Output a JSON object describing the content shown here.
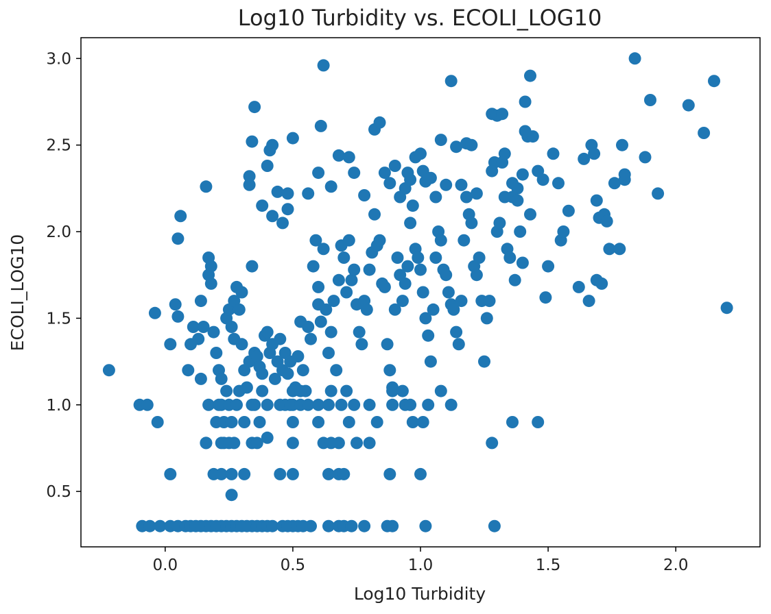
{
  "chart_data": {
    "type": "scatter",
    "title": "Log10 Turbidity vs. ECOLI_LOG10",
    "xlabel": "Log10 Turbidity",
    "ylabel": "ECOLI_LOG10",
    "xlim": [
      -0.33,
      2.33
    ],
    "ylim": [
      0.18,
      3.12
    ],
    "xticks": [
      0.0,
      0.5,
      1.0,
      1.5,
      2.0
    ],
    "xtick_labels": [
      "0.0",
      "0.5",
      "1.0",
      "1.5",
      "2.0"
    ],
    "yticks": [
      0.5,
      1.0,
      1.5,
      2.0,
      2.5,
      3.0
    ],
    "ytick_labels": [
      "0.5",
      "1.0",
      "1.5",
      "2.0",
      "2.5",
      "3.0"
    ],
    "grid": false,
    "legend": "none",
    "marker_color": "#1f77b4",
    "points": [
      [
        -0.22,
        1.2
      ],
      [
        -0.1,
        1.0
      ],
      [
        -0.07,
        1.0
      ],
      [
        -0.03,
        0.9
      ],
      [
        -0.04,
        1.53
      ],
      [
        0.02,
        0.6
      ],
      [
        0.02,
        1.35
      ],
      [
        0.04,
        1.58
      ],
      [
        0.05,
        1.51
      ],
      [
        0.06,
        2.09
      ],
      [
        0.05,
        1.96
      ],
      [
        0.09,
        1.2
      ],
      [
        0.1,
        1.35
      ],
      [
        0.11,
        1.45
      ],
      [
        0.13,
        1.38
      ],
      [
        0.14,
        1.6
      ],
      [
        0.14,
        1.15
      ],
      [
        0.15,
        1.45
      ],
      [
        0.16,
        2.26
      ],
      [
        0.17,
        1.85
      ],
      [
        0.18,
        1.8
      ],
      [
        0.18,
        1.7
      ],
      [
        0.17,
        1.75
      ],
      [
        0.17,
        1.0
      ],
      [
        0.19,
        1.42
      ],
      [
        0.2,
        1.3
      ],
      [
        0.21,
        1.2
      ],
      [
        0.22,
        1.15
      ],
      [
        0.16,
        0.78
      ],
      [
        0.19,
        0.6
      ],
      [
        0.2,
        0.9
      ],
      [
        0.21,
        1.0
      ],
      [
        0.23,
        0.78
      ],
      [
        0.24,
        1.5
      ],
      [
        0.25,
        1.55
      ],
      [
        0.26,
        1.45
      ],
      [
        0.27,
        1.38
      ],
      [
        0.27,
        1.6
      ],
      [
        0.28,
        1.68
      ],
      [
        0.29,
        1.55
      ],
      [
        0.3,
        1.65
      ],
      [
        0.3,
        1.35
      ],
      [
        0.31,
        1.2
      ],
      [
        0.32,
        1.1
      ],
      [
        0.33,
        1.25
      ],
      [
        0.34,
        1.8
      ],
      [
        0.35,
        1.0
      ],
      [
        0.35,
        1.3
      ],
      [
        0.36,
        1.28
      ],
      [
        0.37,
        1.22
      ],
      [
        0.38,
        1.18
      ],
      [
        0.39,
        1.4
      ],
      [
        0.4,
        1.42
      ],
      [
        0.41,
        1.3
      ],
      [
        0.42,
        1.35
      ],
      [
        0.43,
        1.15
      ],
      [
        0.44,
        1.25
      ],
      [
        0.45,
        1.38
      ],
      [
        0.46,
        1.2
      ],
      [
        0.47,
        1.3
      ],
      [
        0.48,
        1.18
      ],
      [
        0.49,
        1.25
      ],
      [
        0.5,
        1.0
      ],
      [
        0.51,
        1.1
      ],
      [
        0.52,
        1.28
      ],
      [
        0.53,
        1.48
      ],
      [
        0.54,
        1.2
      ],
      [
        0.55,
        1.08
      ],
      [
        0.56,
        1.45
      ],
      [
        0.57,
        1.38
      ],
      [
        0.58,
        1.8
      ],
      [
        0.59,
        1.95
      ],
      [
        0.6,
        1.68
      ],
      [
        0.6,
        1.58
      ],
      [
        0.61,
        1.48
      ],
      [
        0.62,
        1.9
      ],
      [
        0.63,
        1.55
      ],
      [
        0.64,
        1.3
      ],
      [
        0.65,
        1.42
      ],
      [
        0.66,
        1.6
      ],
      [
        0.67,
        1.2
      ],
      [
        0.68,
        1.72
      ],
      [
        0.69,
        1.92
      ],
      [
        0.7,
        1.85
      ],
      [
        0.71,
        1.65
      ],
      [
        0.72,
        1.95
      ],
      [
        0.73,
        1.72
      ],
      [
        0.74,
        1.78
      ],
      [
        0.75,
        1.58
      ],
      [
        0.76,
        1.42
      ],
      [
        0.77,
        1.35
      ],
      [
        0.78,
        1.6
      ],
      [
        0.79,
        1.55
      ],
      [
        0.8,
        1.78
      ],
      [
        0.81,
        1.88
      ],
      [
        0.82,
        2.1
      ],
      [
        0.83,
        1.92
      ],
      [
        0.84,
        1.95
      ],
      [
        0.85,
        1.7
      ],
      [
        0.86,
        1.68
      ],
      [
        0.87,
        1.35
      ],
      [
        0.88,
        1.2
      ],
      [
        0.89,
        1.1
      ],
      [
        0.9,
        1.55
      ],
      [
        0.91,
        1.85
      ],
      [
        0.92,
        1.75
      ],
      [
        0.93,
        1.6
      ],
      [
        0.94,
        1.7
      ],
      [
        0.95,
        1.8
      ],
      [
        0.96,
        2.05
      ],
      [
        0.97,
        2.15
      ],
      [
        0.98,
        1.9
      ],
      [
        0.99,
        1.85
      ],
      [
        1.0,
        1.78
      ],
      [
        1.01,
        1.65
      ],
      [
        1.02,
        1.5
      ],
      [
        1.03,
        1.4
      ],
      [
        1.04,
        1.25
      ],
      [
        1.05,
        1.55
      ],
      [
        1.06,
        1.85
      ],
      [
        1.07,
        2.0
      ],
      [
        1.08,
        1.95
      ],
      [
        1.09,
        1.78
      ],
      [
        1.1,
        1.75
      ],
      [
        1.11,
        1.65
      ],
      [
        1.12,
        1.58
      ],
      [
        1.13,
        1.55
      ],
      [
        1.14,
        1.42
      ],
      [
        1.15,
        1.35
      ],
      [
        1.16,
        1.6
      ],
      [
        1.17,
        1.95
      ],
      [
        1.18,
        2.2
      ],
      [
        1.19,
        2.1
      ],
      [
        1.2,
        2.05
      ],
      [
        1.21,
        1.8
      ],
      [
        1.22,
        1.75
      ],
      [
        1.23,
        1.85
      ],
      [
        1.24,
        1.6
      ],
      [
        1.25,
        1.25
      ],
      [
        1.26,
        1.5
      ],
      [
        1.27,
        1.6
      ],
      [
        1.28,
        2.35
      ],
      [
        1.29,
        2.4
      ],
      [
        1.3,
        2.0
      ],
      [
        1.31,
        2.05
      ],
      [
        1.32,
        2.4
      ],
      [
        1.33,
        2.45
      ],
      [
        1.34,
        1.9
      ],
      [
        1.35,
        1.85
      ],
      [
        1.36,
        2.2
      ],
      [
        1.37,
        1.72
      ],
      [
        1.38,
        2.25
      ],
      [
        1.39,
        2.0
      ],
      [
        1.4,
        1.82
      ],
      [
        1.41,
        2.75
      ],
      [
        1.42,
        2.55
      ],
      [
        1.43,
        2.1
      ],
      [
        1.44,
        2.55
      ],
      [
        1.46,
        2.35
      ],
      [
        1.48,
        2.3
      ],
      [
        1.49,
        1.62
      ],
      [
        1.5,
        1.8
      ],
      [
        1.52,
        2.45
      ],
      [
        1.54,
        2.28
      ],
      [
        1.55,
        1.95
      ],
      [
        1.56,
        2.0
      ],
      [
        1.58,
        2.12
      ],
      [
        1.62,
        1.68
      ],
      [
        1.64,
        2.42
      ],
      [
        1.66,
        1.6
      ],
      [
        1.67,
        2.5
      ],
      [
        1.68,
        2.45
      ],
      [
        1.69,
        1.72
      ],
      [
        1.69,
        2.18
      ],
      [
        1.7,
        2.08
      ],
      [
        1.71,
        1.7
      ],
      [
        1.72,
        2.1
      ],
      [
        1.73,
        2.06
      ],
      [
        1.74,
        1.9
      ],
      [
        1.76,
        2.28
      ],
      [
        1.78,
        1.9
      ],
      [
        1.79,
        2.5
      ],
      [
        1.8,
        2.3
      ],
      [
        1.8,
        2.33
      ],
      [
        1.84,
        3.0
      ],
      [
        1.88,
        2.43
      ],
      [
        1.9,
        2.76
      ],
      [
        1.93,
        2.22
      ],
      [
        2.05,
        2.73
      ],
      [
        2.11,
        2.57
      ],
      [
        2.15,
        2.87
      ],
      [
        2.2,
        1.56
      ],
      [
        0.35,
        2.72
      ],
      [
        0.33,
        2.32
      ],
      [
        0.33,
        2.27
      ],
      [
        0.34,
        2.52
      ],
      [
        0.38,
        2.15
      ],
      [
        0.4,
        2.38
      ],
      [
        0.41,
        2.47
      ],
      [
        0.42,
        2.5
      ],
      [
        0.44,
        2.23
      ],
      [
        0.42,
        2.09
      ],
      [
        0.46,
        2.05
      ],
      [
        0.48,
        2.13
      ],
      [
        0.48,
        2.22
      ],
      [
        0.5,
        2.54
      ],
      [
        0.56,
        2.22
      ],
      [
        0.6,
        2.34
      ],
      [
        0.61,
        2.61
      ],
      [
        0.62,
        2.96
      ],
      [
        0.65,
        2.26
      ],
      [
        0.68,
        2.44
      ],
      [
        0.72,
        2.43
      ],
      [
        0.74,
        2.34
      ],
      [
        0.78,
        2.21
      ],
      [
        0.82,
        2.59
      ],
      [
        0.84,
        2.63
      ],
      [
        0.86,
        2.34
      ],
      [
        0.88,
        2.28
      ],
      [
        0.9,
        2.38
      ],
      [
        0.92,
        2.2
      ],
      [
        0.94,
        2.25
      ],
      [
        0.95,
        2.34
      ],
      [
        0.96,
        2.3
      ],
      [
        0.98,
        2.43
      ],
      [
        1.0,
        2.45
      ],
      [
        1.01,
        2.35
      ],
      [
        1.02,
        2.29
      ],
      [
        1.04,
        2.31
      ],
      [
        1.06,
        2.2
      ],
      [
        1.08,
        2.53
      ],
      [
        1.1,
        2.27
      ],
      [
        1.12,
        2.87
      ],
      [
        1.14,
        2.49
      ],
      [
        1.16,
        2.27
      ],
      [
        1.18,
        2.51
      ],
      [
        1.2,
        2.5
      ],
      [
        1.22,
        2.22
      ],
      [
        1.28,
        2.68
      ],
      [
        1.3,
        2.67
      ],
      [
        1.32,
        2.68
      ],
      [
        1.33,
        2.2
      ],
      [
        1.36,
        2.28
      ],
      [
        1.38,
        2.18
      ],
      [
        1.4,
        2.33
      ],
      [
        1.41,
        2.58
      ],
      [
        1.43,
        2.9
      ],
      [
        -0.09,
        0.3
      ],
      [
        -0.06,
        0.3
      ],
      [
        -0.02,
        0.3
      ],
      [
        0.02,
        0.3
      ],
      [
        0.05,
        0.3
      ],
      [
        0.08,
        0.3
      ],
      [
        0.1,
        0.3
      ],
      [
        0.12,
        0.3
      ],
      [
        0.14,
        0.3
      ],
      [
        0.16,
        0.3
      ],
      [
        0.18,
        0.3
      ],
      [
        0.2,
        0.3
      ],
      [
        0.22,
        0.3
      ],
      [
        0.24,
        0.3
      ],
      [
        0.26,
        0.3
      ],
      [
        0.28,
        0.3
      ],
      [
        0.3,
        0.3
      ],
      [
        0.32,
        0.3
      ],
      [
        0.34,
        0.3
      ],
      [
        0.36,
        0.3
      ],
      [
        0.38,
        0.3
      ],
      [
        0.4,
        0.3
      ],
      [
        0.42,
        0.3
      ],
      [
        0.46,
        0.3
      ],
      [
        0.48,
        0.3
      ],
      [
        0.5,
        0.3
      ],
      [
        0.52,
        0.3
      ],
      [
        0.54,
        0.3
      ],
      [
        0.57,
        0.3
      ],
      [
        0.64,
        0.3
      ],
      [
        0.68,
        0.3
      ],
      [
        0.7,
        0.3
      ],
      [
        0.73,
        0.3
      ],
      [
        0.78,
        0.3
      ],
      [
        0.87,
        0.3
      ],
      [
        0.89,
        0.3
      ],
      [
        1.02,
        0.3
      ],
      [
        1.29,
        0.3
      ],
      [
        0.26,
        0.48
      ],
      [
        0.22,
        0.6
      ],
      [
        0.26,
        0.6
      ],
      [
        0.31,
        0.6
      ],
      [
        0.45,
        0.6
      ],
      [
        0.5,
        0.6
      ],
      [
        0.64,
        0.6
      ],
      [
        0.68,
        0.6
      ],
      [
        0.7,
        0.6
      ],
      [
        0.88,
        0.6
      ],
      [
        1.0,
        0.6
      ],
      [
        0.16,
        0.78
      ],
      [
        0.22,
        0.78
      ],
      [
        0.25,
        0.78
      ],
      [
        0.27,
        0.78
      ],
      [
        0.34,
        0.78
      ],
      [
        0.36,
        0.78
      ],
      [
        0.4,
        0.81
      ],
      [
        0.5,
        0.78
      ],
      [
        0.62,
        0.78
      ],
      [
        0.65,
        0.78
      ],
      [
        0.68,
        0.78
      ],
      [
        0.75,
        0.78
      ],
      [
        0.8,
        0.78
      ],
      [
        1.28,
        0.78
      ],
      [
        0.23,
        0.9
      ],
      [
        0.26,
        0.9
      ],
      [
        0.31,
        0.9
      ],
      [
        0.37,
        0.9
      ],
      [
        0.5,
        0.9
      ],
      [
        0.6,
        0.9
      ],
      [
        0.72,
        0.9
      ],
      [
        0.83,
        0.9
      ],
      [
        0.97,
        0.9
      ],
      [
        1.01,
        0.9
      ],
      [
        1.36,
        0.9
      ],
      [
        1.46,
        0.9
      ],
      [
        0.22,
        1.0
      ],
      [
        0.25,
        1.0
      ],
      [
        0.28,
        1.0
      ],
      [
        0.34,
        1.0
      ],
      [
        0.4,
        1.0
      ],
      [
        0.45,
        1.0
      ],
      [
        0.47,
        1.0
      ],
      [
        0.49,
        1.0
      ],
      [
        0.53,
        1.0
      ],
      [
        0.56,
        1.0
      ],
      [
        0.6,
        1.0
      ],
      [
        0.64,
        1.0
      ],
      [
        0.69,
        1.0
      ],
      [
        0.74,
        1.0
      ],
      [
        0.8,
        1.0
      ],
      [
        0.89,
        1.0
      ],
      [
        0.94,
        1.0
      ],
      [
        0.96,
        1.0
      ],
      [
        1.03,
        1.0
      ],
      [
        1.12,
        1.0
      ],
      [
        0.24,
        1.08
      ],
      [
        0.29,
        1.08
      ],
      [
        0.38,
        1.08
      ],
      [
        0.5,
        1.08
      ],
      [
        0.53,
        1.08
      ],
      [
        0.65,
        1.08
      ],
      [
        0.71,
        1.08
      ],
      [
        0.89,
        1.08
      ],
      [
        0.93,
        1.08
      ],
      [
        1.08,
        1.08
      ]
    ]
  }
}
